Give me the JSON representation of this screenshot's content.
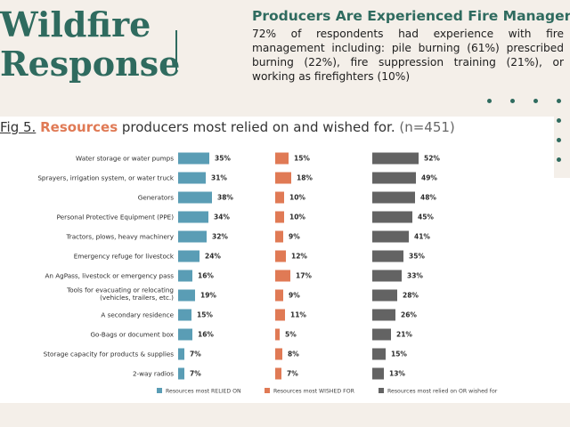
{
  "header": {
    "title_line1": "Wildfire",
    "title_line2": "Response"
  },
  "info": {
    "heading": "Producers Are Experienced Fire Managers",
    "body": "72% of respondents had experience with fire management including: pile burning (61%) prescribed burning (22%), fire suppression training (21%), or working as firefighters (10%)"
  },
  "figure": {
    "number": "Fig 5.",
    "accent": "Resources",
    "rest": " producers most relied on and wished for.",
    "n": " (n=451)"
  },
  "colors": {
    "relied": "#5a9db5",
    "wished": "#e07a55",
    "either": "#636363",
    "brand": "#2f6b5f"
  },
  "chart_data": {
    "type": "bar",
    "orientation": "horizontal",
    "categories": [
      [
        "Water storage or water pumps"
      ],
      [
        "Sprayers, irrigation system, or water truck"
      ],
      [
        "Generators"
      ],
      [
        "Personal Protective Equipment (PPE)"
      ],
      [
        "Tractors, plows, heavy machinery"
      ],
      [
        "Emergency refuge for livestock"
      ],
      [
        "An AgPass, livestock or emergency pass"
      ],
      [
        "Tools for evacuating or relocating",
        "(vehicles, trailers, etc.)"
      ],
      [
        "A secondary residence"
      ],
      [
        "Go-Bags or document box"
      ],
      [
        "Storage capacity for products & supplies"
      ],
      [
        "2-way radios"
      ]
    ],
    "series": [
      {
        "name": "Resources most RELIED ON",
        "values": [
          35,
          31,
          38,
          34,
          32,
          24,
          16,
          19,
          15,
          16,
          7,
          7
        ]
      },
      {
        "name": "Resources most WISHED FOR",
        "values": [
          15,
          18,
          10,
          10,
          9,
          12,
          17,
          9,
          11,
          5,
          8,
          7
        ]
      },
      {
        "name": "Resources most relied on OR wished for",
        "values": [
          52,
          49,
          48,
          45,
          41,
          35,
          33,
          28,
          26,
          21,
          15,
          13
        ]
      }
    ],
    "value_suffix": "%",
    "legend_position": "bottom",
    "grid": false
  }
}
